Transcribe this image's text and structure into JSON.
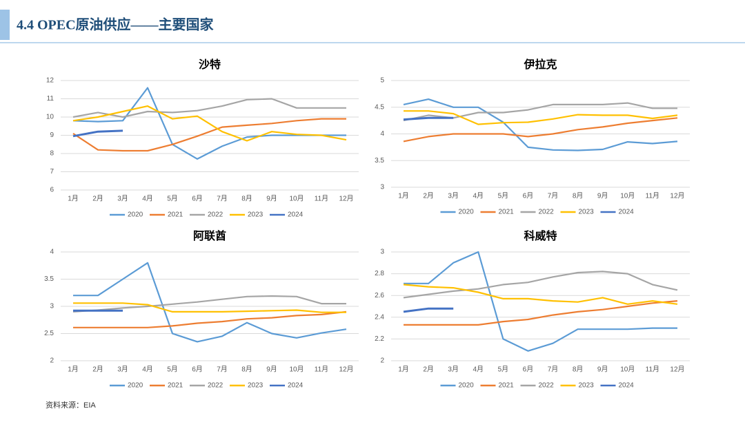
{
  "header": {
    "title": "4.4 OPEC原油供应——主要国家"
  },
  "source": "资料来源：EIA",
  "chart_data": [
    {
      "type": "line",
      "title": "沙特",
      "categories": [
        "1月",
        "2月",
        "3月",
        "4月",
        "5月",
        "6月",
        "7月",
        "8月",
        "9月",
        "10月",
        "11月",
        "12月"
      ],
      "ylim": [
        6,
        12
      ],
      "yticks": [
        6,
        7,
        8,
        9,
        10,
        11,
        12
      ],
      "grid": true,
      "legend": "bottom",
      "series": [
        {
          "name": "2020",
          "color": "#5b9bd5",
          "values": [
            9.8,
            9.75,
            9.8,
            11.6,
            8.5,
            7.7,
            8.4,
            8.9,
            9.0,
            9.0,
            9.0,
            9.0
          ]
        },
        {
          "name": "2021",
          "color": "#ed7d31",
          "values": [
            9.1,
            8.2,
            8.15,
            8.15,
            8.5,
            8.95,
            9.45,
            9.55,
            9.65,
            9.8,
            9.9,
            9.9
          ]
        },
        {
          "name": "2022",
          "color": "#a5a5a5",
          "values": [
            10.0,
            10.25,
            10.0,
            10.3,
            10.25,
            10.35,
            10.6,
            10.95,
            11.0,
            10.5,
            10.5,
            10.5
          ]
        },
        {
          "name": "2023",
          "color": "#ffc000",
          "values": [
            9.8,
            10.0,
            10.3,
            10.6,
            9.9,
            10.05,
            9.2,
            8.7,
            9.2,
            9.05,
            9.0,
            8.75
          ]
        },
        {
          "name": "2024",
          "color": "#4472c4",
          "values": [
            8.95,
            9.2,
            9.25,
            null,
            null,
            null,
            null,
            null,
            null,
            null,
            null,
            null
          ]
        }
      ]
    },
    {
      "type": "line",
      "title": "伊拉克",
      "categories": [
        "1月",
        "2月",
        "3月",
        "4月",
        "5月",
        "6月",
        "7月",
        "8月",
        "9月",
        "10月",
        "11月",
        "12月"
      ],
      "ylim": [
        3,
        5
      ],
      "yticks": [
        3,
        3.5,
        4,
        4.5,
        5
      ],
      "grid": true,
      "legend": "bottom",
      "series": [
        {
          "name": "2020",
          "color": "#5b9bd5",
          "values": [
            4.55,
            4.65,
            4.5,
            4.5,
            4.22,
            3.75,
            3.7,
            3.69,
            3.71,
            3.85,
            3.82,
            3.86
          ]
        },
        {
          "name": "2021",
          "color": "#ed7d31",
          "values": [
            3.86,
            3.95,
            4.0,
            4.0,
            4.0,
            3.95,
            4.0,
            4.08,
            4.13,
            4.2,
            4.25,
            4.3
          ]
        },
        {
          "name": "2022",
          "color": "#a5a5a5",
          "values": [
            4.25,
            4.35,
            4.3,
            4.4,
            4.4,
            4.45,
            4.55,
            4.55,
            4.55,
            4.58,
            4.48,
            4.48
          ]
        },
        {
          "name": "2023",
          "color": "#ffc000",
          "values": [
            4.43,
            4.43,
            4.38,
            4.18,
            4.21,
            4.22,
            4.28,
            4.36,
            4.35,
            4.35,
            4.29,
            4.35
          ]
        },
        {
          "name": "2024",
          "color": "#4472c4",
          "values": [
            4.27,
            4.3,
            4.3,
            null,
            null,
            null,
            null,
            null,
            null,
            null,
            null,
            null
          ]
        }
      ]
    },
    {
      "type": "line",
      "title": "阿联酋",
      "categories": [
        "1月",
        "2月",
        "3月",
        "4月",
        "5月",
        "6月",
        "7月",
        "8月",
        "9月",
        "10月",
        "11月",
        "12月"
      ],
      "ylim": [
        2,
        4
      ],
      "yticks": [
        2,
        2.5,
        3,
        3.5,
        4
      ],
      "grid": true,
      "legend": "bottom",
      "series": [
        {
          "name": "2020",
          "color": "#5b9bd5",
          "values": [
            3.2,
            3.2,
            3.5,
            3.8,
            2.5,
            2.35,
            2.45,
            2.7,
            2.5,
            2.42,
            2.51,
            2.58
          ]
        },
        {
          "name": "2021",
          "color": "#ed7d31",
          "values": [
            2.61,
            2.61,
            2.61,
            2.61,
            2.64,
            2.69,
            2.72,
            2.77,
            2.79,
            2.83,
            2.85,
            2.9
          ]
        },
        {
          "name": "2022",
          "color": "#a5a5a5",
          "values": [
            2.9,
            2.93,
            2.97,
            3.0,
            3.04,
            3.08,
            3.13,
            3.18,
            3.19,
            3.18,
            3.05,
            3.05
          ]
        },
        {
          "name": "2023",
          "color": "#ffc000",
          "values": [
            3.06,
            3.06,
            3.06,
            3.03,
            2.9,
            2.9,
            2.9,
            2.91,
            2.92,
            2.93,
            2.89,
            2.89
          ]
        },
        {
          "name": "2024",
          "color": "#4472c4",
          "values": [
            2.92,
            2.92,
            2.92,
            null,
            null,
            null,
            null,
            null,
            null,
            null,
            null,
            null
          ]
        }
      ]
    },
    {
      "type": "line",
      "title": "科威特",
      "categories": [
        "1月",
        "2月",
        "3月",
        "4月",
        "5月",
        "6月",
        "7月",
        "8月",
        "9月",
        "10月",
        "11月",
        "12月"
      ],
      "ylim": [
        2,
        3
      ],
      "yticks": [
        2,
        2.2,
        2.4,
        2.6,
        2.8,
        3
      ],
      "grid": true,
      "legend": "bottom",
      "series": [
        {
          "name": "2020",
          "color": "#5b9bd5",
          "values": [
            2.71,
            2.71,
            2.9,
            3.0,
            2.2,
            2.09,
            2.16,
            2.29,
            2.29,
            2.29,
            2.3,
            2.3
          ]
        },
        {
          "name": "2021",
          "color": "#ed7d31",
          "values": [
            2.33,
            2.33,
            2.33,
            2.33,
            2.36,
            2.38,
            2.42,
            2.45,
            2.47,
            2.5,
            2.53,
            2.55
          ]
        },
        {
          "name": "2022",
          "color": "#a5a5a5",
          "values": [
            2.58,
            2.61,
            2.64,
            2.66,
            2.7,
            2.72,
            2.77,
            2.81,
            2.82,
            2.8,
            2.7,
            2.65
          ]
        },
        {
          "name": "2023",
          "color": "#ffc000",
          "values": [
            2.7,
            2.68,
            2.67,
            2.63,
            2.57,
            2.57,
            2.55,
            2.54,
            2.58,
            2.52,
            2.55,
            2.52
          ]
        },
        {
          "name": "2024",
          "color": "#4472c4",
          "values": [
            2.45,
            2.48,
            2.48,
            null,
            null,
            null,
            null,
            null,
            null,
            null,
            null,
            null
          ]
        }
      ]
    }
  ]
}
